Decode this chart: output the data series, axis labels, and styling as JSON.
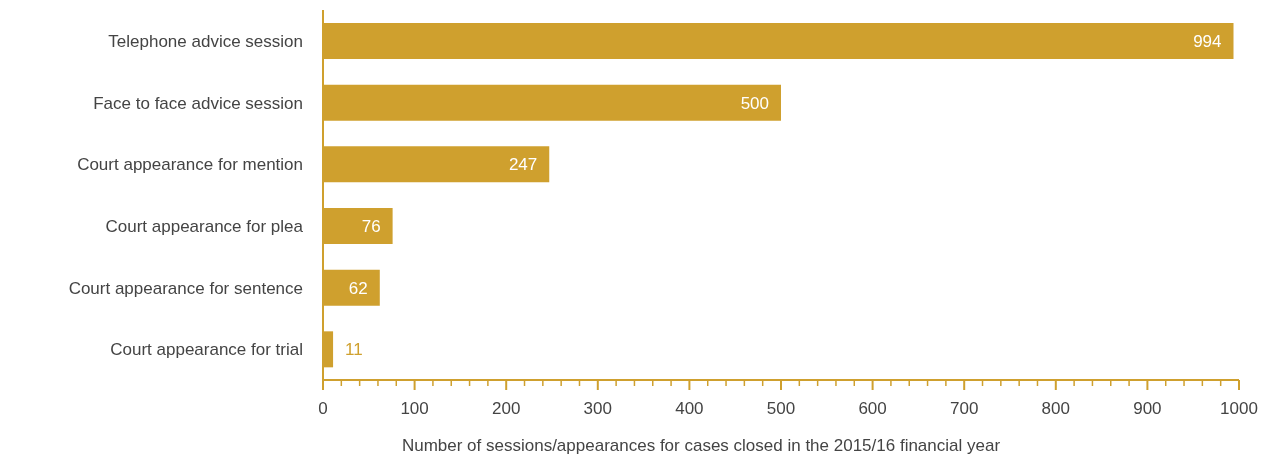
{
  "chart_data": {
    "type": "bar",
    "orientation": "horizontal",
    "xlabel": "Number of sessions/appearances for cases closed in the 2015/16 financial year",
    "categories": [
      "Telephone advice session",
      "Face to face advice session",
      "Court appearance for mention",
      "Court appearance for plea",
      "Court appearance for sentence",
      "Court appearance for trial"
    ],
    "values": [
      994,
      500,
      247,
      76,
      62,
      11
    ],
    "color": "#cfa02e",
    "xlim": [
      0,
      1000
    ],
    "xticks": [
      0,
      {
        "value": 20,
        "label": null
      },
      {
        "value": 40,
        "label": null
      },
      {
        "value": 60,
        "label": null
      },
      {
        "value": 80,
        "label": null
      },
      100,
      {
        "value": 120,
        "label": null
      },
      {
        "value": 140,
        "label": null
      },
      {
        "value": 160,
        "label": null
      },
      {
        "value": 180,
        "label": null
      },
      200,
      {
        "value": 220,
        "label": null
      },
      {
        "value": 240,
        "label": null
      },
      {
        "value": 260,
        "label": null
      },
      {
        "value": 280,
        "label": null
      },
      300,
      {
        "value": 320,
        "label": null
      },
      {
        "value": 340,
        "label": null
      },
      {
        "value": 360,
        "label": null
      },
      {
        "value": 380,
        "label": null
      },
      400,
      {
        "value": 420,
        "label": null
      },
      {
        "value": 440,
        "label": null
      },
      {
        "value": 460,
        "label": null
      },
      {
        "value": 480,
        "label": null
      },
      500,
      {
        "value": 520,
        "label": null
      },
      {
        "value": 540,
        "label": null
      },
      {
        "value": 560,
        "label": null
      },
      {
        "value": 580,
        "label": null
      },
      600,
      {
        "value": 620,
        "label": null
      },
      {
        "value": 640,
        "label": null
      },
      {
        "value": 660,
        "label": null
      },
      {
        "value": 680,
        "label": null
      },
      700,
      {
        "value": 720,
        "label": null
      },
      {
        "value": 740,
        "label": null
      },
      {
        "value": 760,
        "label": null
      },
      {
        "value": 780,
        "label": null
      },
      800,
      {
        "value": 820,
        "label": null
      },
      {
        "value": 840,
        "label": null
      },
      {
        "value": 860,
        "label": null
      },
      {
        "value": 880,
        "label": null
      },
      900,
      {
        "value": 920,
        "label": null
      },
      {
        "value": 940,
        "label": null
      },
      {
        "value": 960,
        "label": null
      },
      {
        "value": 980,
        "label": null
      },
      1000
    ],
    "data_labels": true,
    "grid": false,
    "legend": false
  }
}
